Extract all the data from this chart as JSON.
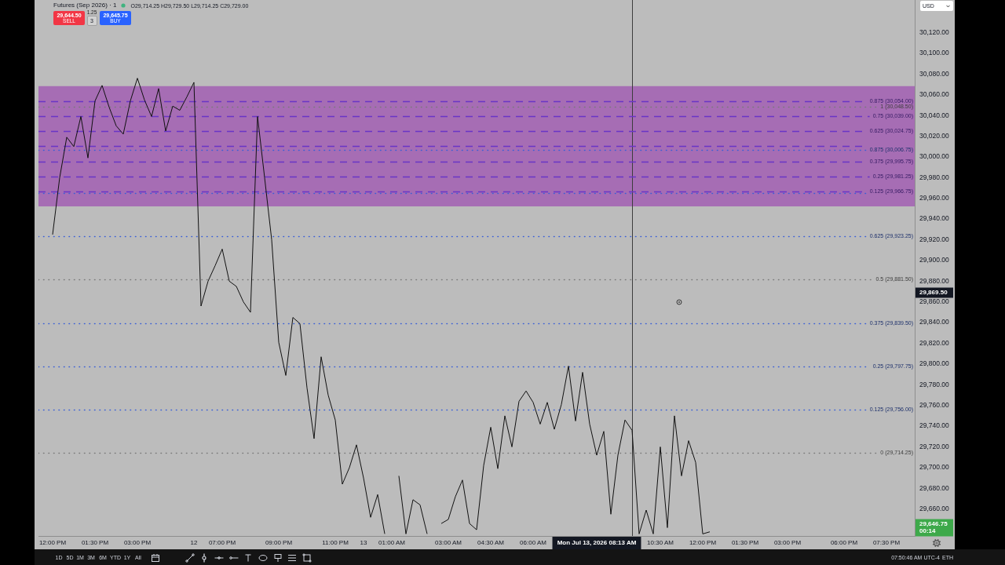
{
  "chart_data": {
    "type": "line",
    "title": "Futures (Sep 2026) · 1",
    "subtitle": "O29,714.25 H29,729.50 L29,714.25 C29,729.00",
    "categories": [
      null,
      null,
      "12:00 PM",
      null,
      null,
      null,
      null,
      null,
      "01:30 PM",
      null,
      null,
      null,
      null,
      null,
      "03:00 PM",
      null,
      null,
      null,
      null,
      null,
      null,
      null,
      "12",
      null,
      null,
      null,
      "07:00 PM",
      null,
      null,
      null,
      null,
      null,
      null,
      null,
      "09:00 PM",
      null,
      null,
      null,
      null,
      null,
      null,
      null,
      "11:00 PM",
      null,
      null,
      null,
      "13",
      null,
      null,
      null,
      "01:00 AM",
      null,
      null,
      null,
      null,
      null,
      null,
      null,
      "03:00 AM",
      null,
      null,
      null,
      null,
      null,
      "04:30 AM",
      null,
      null,
      null,
      null,
      null,
      "06:00 AM",
      null,
      null,
      null,
      null,
      null,
      null,
      null,
      null,
      null,
      null,
      null,
      null,
      null,
      null,
      null,
      null,
      null,
      "10:30 AM",
      null,
      null,
      null,
      null,
      null,
      "12:00 PM",
      null,
      null,
      null,
      null,
      null,
      "01:30 PM",
      null,
      null,
      null,
      null,
      null,
      "03:00 PM",
      null,
      null,
      null,
      null,
      null,
      null,
      null,
      "06:00 PM",
      null,
      null,
      null,
      null,
      null,
      "07:30 PM",
      null,
      null,
      null,
      null
    ],
    "values": [
      null,
      null,
      29925,
      29980,
      30019,
      30010,
      30039,
      29999,
      30054,
      30069,
      30048,
      30030,
      30022,
      30054,
      30076,
      30055,
      30039,
      30066,
      30025,
      30049,
      30045,
      30058,
      30072,
      29856,
      29880,
      29895,
      29911,
      29880,
      29875,
      29860,
      29850,
      30039,
      29980,
      29920,
      29821,
      29789,
      29845,
      29839,
      29777,
      29728,
      29807,
      29770,
      29746,
      29684,
      29700,
      29722,
      29690,
      29652,
      29674,
      29636,
      null,
      29692,
      29636,
      29669,
      29664,
      29636,
      null,
      29646,
      29650,
      29672,
      29688,
      29646,
      29640,
      29702,
      29739,
      29699,
      29750,
      29720,
      29764,
      29774,
      29763,
      29742,
      29763,
      29737,
      29761,
      29798,
      29745,
      29792,
      29742,
      29712,
      29735,
      29655,
      29712,
      29746,
      29736,
      29636,
      29659,
      29636,
      29720,
      29642,
      29750,
      29692,
      29726,
      29705,
      29636,
      29638,
      null,
      null,
      null,
      null,
      null,
      null,
      null,
      null,
      null,
      null,
      null,
      null,
      null,
      null,
      null,
      null,
      null,
      null,
      null,
      null,
      null,
      null,
      null,
      null,
      null,
      null,
      null,
      null,
      null
    ],
    "color": "#111111",
    "ylim": [
      29634,
      30151.5
    ],
    "yticks": [
      {
        "value": 29660,
        "label": "29,660.00"
      },
      {
        "value": 29680,
        "label": "29,680.00"
      },
      {
        "value": 29700,
        "label": "29,700.00"
      },
      {
        "value": 29720,
        "label": "29,720.00"
      },
      {
        "value": 29740,
        "label": "29,740.00"
      },
      {
        "value": 29760,
        "label": "29,760.00"
      },
      {
        "value": 29780,
        "label": "29,780.00"
      },
      {
        "value": 29800,
        "label": "29,800.00"
      },
      {
        "value": 29820,
        "label": "29,820.00"
      },
      {
        "value": 29840,
        "label": "29,840.00"
      },
      {
        "value": 29860,
        "label": "29,860.00"
      },
      {
        "value": 29880,
        "label": "29,880.00"
      },
      {
        "value": 29900,
        "label": "29,900.00"
      },
      {
        "value": 29920,
        "label": "29,920.00"
      },
      {
        "value": 29940,
        "label": "29,940.00"
      },
      {
        "value": 29960,
        "label": "29,960.00"
      },
      {
        "value": 29980,
        "label": "29,980.00"
      },
      {
        "value": 30000,
        "label": "30,000.00"
      },
      {
        "value": 30020,
        "label": "30,020.00"
      },
      {
        "value": 30040,
        "label": "30,040.00"
      },
      {
        "value": 30060,
        "label": "30,060.00"
      },
      {
        "value": 30080,
        "label": "30,080.00"
      },
      {
        "value": 30100,
        "label": "30,100.00"
      },
      {
        "value": 30120,
        "label": "30,120.00"
      }
    ],
    "bands": [
      {
        "axis": "y",
        "from": 29952.25,
        "to": 30068.25,
        "color": "#a66db4"
      }
    ],
    "ref_lines": [
      {
        "axis": "y",
        "value": 30054,
        "label": "0.875 (30,054.00)",
        "color": "#6a35c6",
        "line_style": "dashed"
      },
      {
        "axis": "y",
        "value": 30048.5,
        "label": "1 (30,048.50)",
        "color": "#7a7a7a",
        "line_style": "dotted"
      },
      {
        "axis": "y",
        "value": 30039,
        "label": "0.75 (30,039.00)",
        "color": "#6a35c6",
        "line_style": "dashed"
      },
      {
        "axis": "y",
        "value": 30024.75,
        "label": "0.625 (30,024.75)",
        "color": "#6a35c6",
        "line_style": "dashed"
      },
      {
        "axis": "y",
        "value": 30010.25,
        "color": "#6a35c6",
        "line_style": "dashed"
      },
      {
        "axis": "y",
        "value": 30006.75,
        "label": "0.875 (30,006.75)",
        "color": "#3a5fd6",
        "line_style": "dotted"
      },
      {
        "axis": "y",
        "value": 29995.75,
        "label": "0.375 (29,995.75)",
        "color": "#6a35c6",
        "line_style": "dashed"
      },
      {
        "axis": "y",
        "value": 29981.25,
        "label": "0.25 (29,981.25)",
        "color": "#6a35c6",
        "line_style": "dashed"
      },
      {
        "axis": "y",
        "value": 29966.75,
        "label": "0.125 (29,966.75)",
        "color": "#6a35c6",
        "line_style": "dashed"
      },
      {
        "axis": "y",
        "value": 29965,
        "color": "#3a5fd6",
        "line_style": "dotted"
      },
      {
        "axis": "y",
        "value": 29923.25,
        "label": "0.625 (29,923.25)",
        "color": "#3a5fd6",
        "line_style": "dotted"
      },
      {
        "axis": "y",
        "value": 29881.5,
        "label": "0.5 (29,881.50)",
        "color": "#7a7a7a",
        "line_style": "dotted"
      },
      {
        "axis": "y",
        "value": 29839.5,
        "label": "0.375 (29,839.50)",
        "color": "#3a5fd6",
        "line_style": "dotted"
      },
      {
        "axis": "y",
        "value": 29797.75,
        "label": "0.25 (29,797.75)",
        "color": "#3a5fd6",
        "line_style": "dotted"
      },
      {
        "axis": "y",
        "value": 29756,
        "label": "0.125 (29,756.00)",
        "color": "#3a5fd6",
        "line_style": "dotted"
      },
      {
        "axis": "y",
        "value": 29714.25,
        "label": "0 (29,714.25)",
        "color": "#7a7a7a",
        "line_style": "dotted"
      }
    ],
    "annotations": [
      "Mon Jul 13, 2026 08:13 AM",
      "29,869.50",
      "29,646.75\n00:14",
      "29,644.50",
      "SELL",
      "1.25",
      "3",
      "29,645.75",
      "BUY",
      "USD",
      "1D",
      "5D",
      "1M",
      "3M",
      "6M",
      "YTD",
      "1Y",
      "All",
      "07:50:46 AM UTC-4",
      "ETH"
    ]
  }
}
